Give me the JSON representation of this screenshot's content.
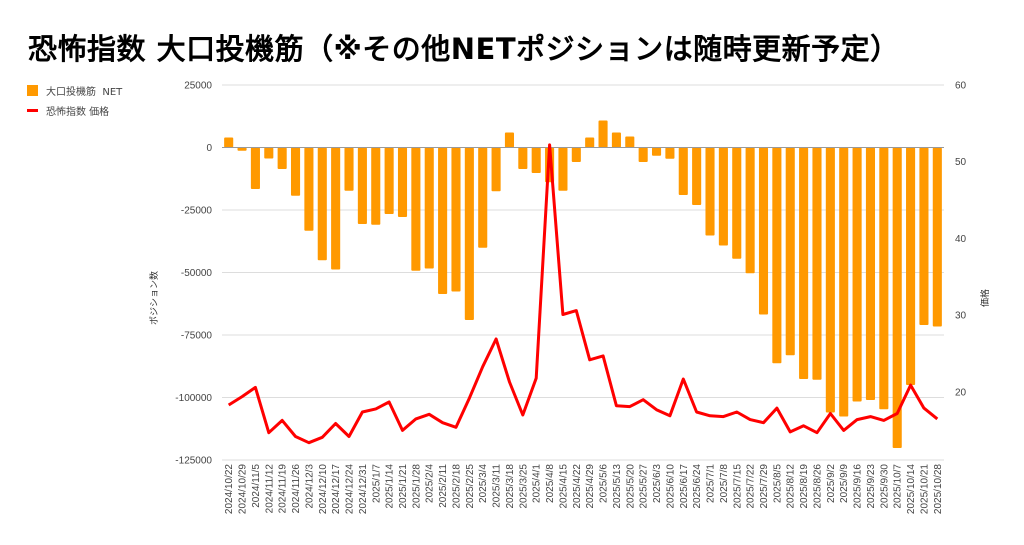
{
  "title": "恐怖指数 大口投機筋（※その他NETポジションは随時更新予定）",
  "legend": [
    {
      "label": "大口投機筋  NET",
      "type": "bar",
      "color": "#ff9900"
    },
    {
      "label": "恐怖指数 価格",
      "type": "line",
      "color": "#ff0000"
    }
  ],
  "chart_data": {
    "type": "bar",
    "title": "恐怖指数 大口投機筋（※その他NETポジションは随時更新予定）",
    "xlabel": "",
    "ylabel": "ポジション数",
    "y2label": "価格",
    "ylim": [
      -125000,
      25000
    ],
    "yticks": [
      25000,
      0,
      -25000,
      -50000,
      -75000,
      -100000,
      -125000
    ],
    "y2lim": [
      11.14,
      60
    ],
    "y2ticks": [
      60,
      50,
      40,
      30,
      20
    ],
    "grid": true,
    "legend_position": "top-left",
    "categories": [
      "2024/10/22",
      "2024/10/29",
      "2024/11/5",
      "2024/11/12",
      "2024/11/19",
      "2024/11/26",
      "2024/12/3",
      "2024/12/10",
      "2024/12/17",
      "2024/12/24",
      "2024/12/31",
      "2025/1/7",
      "2025/1/14",
      "2025/1/21",
      "2025/1/28",
      "2025/2/4",
      "2025/2/11",
      "2025/2/18",
      "2025/2/25",
      "2025/3/4",
      "2025/3/11",
      "2025/3/18",
      "2025/3/25",
      "2025/4/1",
      "2025/4/8",
      "2025/4/15",
      "2025/4/22",
      "2025/4/29",
      "2025/5/6",
      "2025/5/13",
      "2025/5/20",
      "2025/5/27",
      "2025/6/3",
      "2025/6/10",
      "2025/6/17",
      "2025/6/24",
      "2025/7/1",
      "2025/7/8",
      "2025/7/15",
      "2025/7/22",
      "2025/7/29",
      "2025/8/5",
      "2025/8/12",
      "2025/8/19",
      "2025/8/26",
      "2025/9/2",
      "2025/9/9",
      "2025/9/16",
      "2025/9/23",
      "2025/9/30",
      "2025/10/7",
      "2025/10/14",
      "2025/10/21",
      "2025/10/28"
    ],
    "series": [
      {
        "name": "大口投機筋  NET",
        "type": "bar",
        "axis": "left",
        "color": "#ff9900",
        "values": [
          4000,
          -1300,
          -16600,
          -4400,
          -8600,
          -19300,
          -33300,
          -45100,
          -48800,
          -17300,
          -30600,
          -30900,
          -26600,
          -27800,
          -49300,
          -48400,
          -58600,
          -57600,
          -69000,
          -40100,
          -17500,
          6000,
          -8600,
          -10200,
          -13900,
          -17300,
          -5800,
          4000,
          10800,
          6000,
          4400,
          -5800,
          -3300,
          -4500,
          -19000,
          -23000,
          -35200,
          -39200,
          -44500,
          -50300,
          -66800,
          -86300,
          -83100,
          -92600,
          -92900,
          -106000,
          -107600,
          -101600,
          -101000,
          -104700,
          -120200,
          -95000,
          -71000,
          -71600
        ]
      },
      {
        "name": "恐怖指数 価格",
        "type": "line",
        "axis": "right",
        "color": "#ff0000",
        "values": [
          18.3,
          19.4,
          20.6,
          14.7,
          16.3,
          14.2,
          13.4,
          14.1,
          15.9,
          14.2,
          17.4,
          17.8,
          18.7,
          15.0,
          16.5,
          17.1,
          16.0,
          15.4,
          19.2,
          23.3,
          26.9,
          21.3,
          17.0,
          21.8,
          52.2,
          30.1,
          30.6,
          24.2,
          24.7,
          18.2,
          18.1,
          19.0,
          17.7,
          16.9,
          21.7,
          17.4,
          16.9,
          16.8,
          17.4,
          16.4,
          16.0,
          17.9,
          14.8,
          15.6,
          14.7,
          17.2,
          15.0,
          16.4,
          16.8,
          16.3,
          17.2,
          20.9,
          17.9,
          16.5
        ]
      }
    ]
  }
}
